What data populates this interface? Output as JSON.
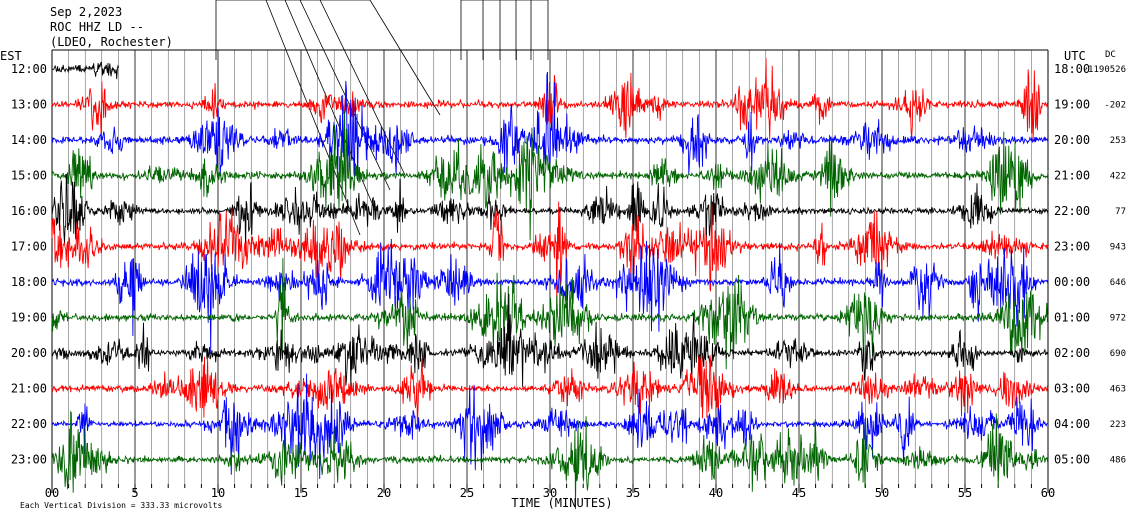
{
  "header": {
    "date": "Sep 2,2023",
    "station": "ROC HHZ LD --",
    "location": "(LDEO, Rochester)"
  },
  "left_zone": "EST",
  "right_zone": "UTC",
  "dc_label": "DC",
  "footer": "Each Vertical Division =  333.33 microvolts",
  "colors": {
    "black": "#000000",
    "red": "#ff0000",
    "blue": "#0000ff",
    "green": "#006400"
  },
  "chart_data": {
    "type": "line",
    "title": "",
    "xlabel": "TIME (MINUTES)",
    "ylabel": "",
    "xlim": [
      0,
      60
    ],
    "x_ticks": [
      "00",
      "5",
      "10",
      "15",
      "20",
      "25",
      "30",
      "35",
      "40",
      "45",
      "50",
      "55",
      "60"
    ],
    "rows": [
      {
        "est": "12:00",
        "utc": "18:00",
        "dc": "-1190526",
        "color": "black",
        "end_minute": 4,
        "activity": 0.6
      },
      {
        "est": "13:00",
        "utc": "19:00",
        "dc": "-202",
        "color": "red",
        "end_minute": 60,
        "activity": 1.0
      },
      {
        "est": "14:00",
        "utc": "20:00",
        "dc": "253",
        "color": "blue",
        "end_minute": 60,
        "activity": 1.0
      },
      {
        "est": "15:00",
        "utc": "21:00",
        "dc": "422",
        "color": "green",
        "end_minute": 60,
        "activity": 0.95
      },
      {
        "est": "16:00",
        "utc": "22:00",
        "dc": "77",
        "color": "black",
        "end_minute": 60,
        "activity": 0.85
      },
      {
        "est": "17:00",
        "utc": "23:00",
        "dc": "943",
        "color": "red",
        "end_minute": 60,
        "activity": 1.0
      },
      {
        "est": "18:00",
        "utc": "00:00",
        "dc": "646",
        "color": "blue",
        "end_minute": 60,
        "activity": 1.0
      },
      {
        "est": "19:00",
        "utc": "01:00",
        "dc": "972",
        "color": "green",
        "end_minute": 60,
        "activity": 1.0
      },
      {
        "est": "20:00",
        "utc": "02:00",
        "dc": "690",
        "color": "black",
        "end_minute": 60,
        "activity": 0.8
      },
      {
        "est": "21:00",
        "utc": "03:00",
        "dc": "463",
        "color": "red",
        "end_minute": 60,
        "activity": 0.9
      },
      {
        "est": "22:00",
        "utc": "04:00",
        "dc": "223",
        "color": "blue",
        "end_minute": 60,
        "activity": 0.8
      },
      {
        "est": "23:00",
        "utc": "05:00",
        "dc": "486",
        "color": "green",
        "end_minute": 60,
        "activity": 0.9
      }
    ]
  }
}
